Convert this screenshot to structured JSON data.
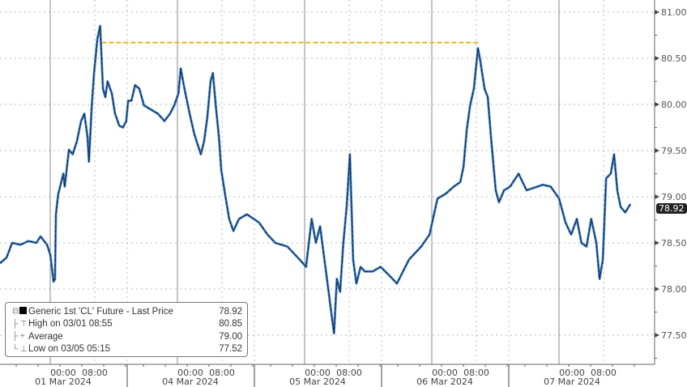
{
  "chart_data": {
    "type": "line",
    "title": "",
    "xlabel": "",
    "ylabel": "",
    "ylim": [
      77.25,
      81.1
    ],
    "y_ticks": [
      "81.00",
      "80.50",
      "80.00",
      "79.50",
      "79.00",
      "78.50",
      "78.00",
      "77.50"
    ],
    "y_tick_values": [
      81.0,
      80.5,
      80.0,
      79.5,
      79.0,
      78.5,
      78.0,
      77.5
    ],
    "y_axis_side": "right",
    "grid": true,
    "legend_placement": "bottom-left",
    "sessions": [
      "03/01",
      "03/04",
      "03/05",
      "03/06",
      "03/07"
    ],
    "x_ticks": [
      {
        "time": "00:00",
        "date": "01 Mar 2024"
      },
      {
        "time": "08:00",
        "date": ""
      },
      {
        "time": "00:00",
        "date": "04 Mar 2024"
      },
      {
        "time": "08:00",
        "date": ""
      },
      {
        "time": "00:00",
        "date": "05 Mar 2024"
      },
      {
        "time": "08:00",
        "date": ""
      },
      {
        "time": "00:00",
        "date": "06 Mar 2024"
      },
      {
        "time": "08:00",
        "date": ""
      },
      {
        "time": "00:00",
        "date": "07 Mar 2024"
      },
      {
        "time": "08:00",
        "date": ""
      }
    ],
    "series": [
      {
        "name": "Generic 1st 'CL' Future - Last Price",
        "color": "#1f4e8c",
        "points": [
          [
            "02/29 15:00",
            78.28
          ],
          [
            "02/29 16:10",
            78.34
          ],
          [
            "02/29 17:10",
            78.5
          ],
          [
            "02/29 18:40",
            78.48
          ],
          [
            "02/29 20:05",
            78.52
          ],
          [
            "02/29 21:30",
            78.5
          ],
          [
            "02/29 22:15",
            78.57
          ],
          [
            "02/29 23:25",
            78.48
          ],
          [
            "03/01 00:00",
            78.37
          ],
          [
            "03/01 00:35",
            78.08
          ],
          [
            "03/01 00:50",
            78.11
          ],
          [
            "03/01 01:00",
            78.81
          ],
          [
            "03/01 01:25",
            79.03
          ],
          [
            "03/01 02:20",
            79.25
          ],
          [
            "03/01 02:35",
            79.11
          ],
          [
            "03/01 03:20",
            79.51
          ],
          [
            "03/01 04:00",
            79.46
          ],
          [
            "03/01 04:45",
            79.6
          ],
          [
            "03/01 05:30",
            79.82
          ],
          [
            "03/01 06:05",
            79.9
          ],
          [
            "03/01 06:40",
            79.64
          ],
          [
            "03/01 06:55",
            79.38
          ],
          [
            "03/01 07:25",
            79.99
          ],
          [
            "03/01 07:50",
            80.34
          ],
          [
            "03/01 08:25",
            80.71
          ],
          [
            "03/01 08:55",
            80.85
          ],
          [
            "03/01 09:10",
            80.52
          ],
          [
            "03/01 09:25",
            80.17
          ],
          [
            "03/01 09:50",
            80.08
          ],
          [
            "03/01 10:15",
            80.25
          ],
          [
            "03/01 11:00",
            80.12
          ],
          [
            "03/01 11:35",
            79.9
          ],
          [
            "03/01 12:20",
            79.77
          ],
          [
            "03/01 13:00",
            79.75
          ],
          [
            "03/01 13:35",
            79.82
          ],
          [
            "03/03 15:10",
            80.04
          ],
          [
            "03/03 15:45",
            80.04
          ],
          [
            "03/03 16:25",
            80.21
          ],
          [
            "03/03 17:10",
            80.17
          ],
          [
            "03/03 18:00",
            79.99
          ],
          [
            "03/03 19:05",
            79.95
          ],
          [
            "03/03 20:30",
            79.9
          ],
          [
            "03/03 21:40",
            79.82
          ],
          [
            "03/03 22:40",
            79.9
          ],
          [
            "03/03 23:25",
            79.99
          ],
          [
            "03/04 00:10",
            80.12
          ],
          [
            "03/04 00:35",
            80.39
          ],
          [
            "03/04 01:15",
            80.17
          ],
          [
            "03/04 02:10",
            79.9
          ],
          [
            "03/04 03:00",
            79.68
          ],
          [
            "03/04 04:10",
            79.46
          ],
          [
            "03/04 04:45",
            79.6
          ],
          [
            "03/04 05:20",
            79.86
          ],
          [
            "03/04 05:55",
            80.25
          ],
          [
            "03/04 06:20",
            80.34
          ],
          [
            "03/04 06:50",
            79.99
          ],
          [
            "03/04 07:25",
            79.64
          ],
          [
            "03/04 07:50",
            79.29
          ],
          [
            "03/04 08:30",
            79.03
          ],
          [
            "03/04 09:15",
            78.76
          ],
          [
            "03/04 10:00",
            78.63
          ],
          [
            "03/04 11:00",
            78.76
          ],
          [
            "03/04 12:25",
            78.81
          ],
          [
            "03/04 15:50",
            78.72
          ],
          [
            "03/04 17:20",
            78.59
          ],
          [
            "03/04 18:45",
            78.5
          ],
          [
            "03/04 20:55",
            78.46
          ],
          [
            "03/04 23:05",
            78.32
          ],
          [
            "03/05 00:15",
            78.24
          ],
          [
            "03/05 01:15",
            78.76
          ],
          [
            "03/05 02:00",
            78.5
          ],
          [
            "03/05 02:45",
            78.68
          ],
          [
            "03/05 04:10",
            78.02
          ],
          [
            "03/05 04:55",
            77.67
          ],
          [
            "03/05 05:15",
            77.52
          ],
          [
            "03/05 05:45",
            78.11
          ],
          [
            "03/05 06:20",
            77.97
          ],
          [
            "03/05 06:55",
            78.5
          ],
          [
            "03/05 07:30",
            78.89
          ],
          [
            "03/05 08:05",
            79.46
          ],
          [
            "03/05 08:40",
            78.32
          ],
          [
            "03/05 09:15",
            78.06
          ],
          [
            "03/05 10:00",
            78.24
          ],
          [
            "03/05 10:45",
            78.19
          ],
          [
            "03/05 12:10",
            78.19
          ],
          [
            "03/05 13:35",
            78.24
          ],
          [
            "03/05 16:20",
            78.15
          ],
          [
            "03/05 17:45",
            78.06
          ],
          [
            "03/05 18:30",
            78.15
          ],
          [
            "03/05 19:55",
            78.32
          ],
          [
            "03/05 22:05",
            78.46
          ],
          [
            "03/05 23:35",
            78.59
          ],
          [
            "03/06 01:00",
            78.98
          ],
          [
            "03/06 02:25",
            79.03
          ],
          [
            "03/06 03:55",
            79.11
          ],
          [
            "03/06 05:05",
            79.16
          ],
          [
            "03/06 05:40",
            79.33
          ],
          [
            "03/06 06:15",
            79.73
          ],
          [
            "03/06 06:50",
            79.99
          ],
          [
            "03/06 07:30",
            80.17
          ],
          [
            "03/06 08:15",
            80.61
          ],
          [
            "03/06 08:40",
            80.47
          ],
          [
            "03/06 09:25",
            80.17
          ],
          [
            "03/06 10:00",
            80.08
          ],
          [
            "03/06 10:35",
            79.64
          ],
          [
            "03/06 11:25",
            79.07
          ],
          [
            "03/06 12:00",
            78.94
          ],
          [
            "03/06 12:55",
            79.07
          ],
          [
            "03/06 15:15",
            79.11
          ],
          [
            "03/06 16:45",
            79.25
          ],
          [
            "03/06 18:10",
            79.07
          ],
          [
            "03/06 19:40",
            79.1
          ],
          [
            "03/06 21:05",
            79.13
          ],
          [
            "03/06 22:30",
            79.11
          ],
          [
            "03/07 00:00",
            78.98
          ],
          [
            "03/07 01:10",
            78.72
          ],
          [
            "03/07 02:10",
            78.59
          ],
          [
            "03/07 03:10",
            78.76
          ],
          [
            "03/07 04:00",
            78.5
          ],
          [
            "03/07 04:55",
            78.46
          ],
          [
            "03/07 05:45",
            78.76
          ],
          [
            "03/07 06:40",
            78.5
          ],
          [
            "03/07 07:15",
            78.11
          ],
          [
            "03/07 07:50",
            78.32
          ],
          [
            "03/07 08:25",
            79.2
          ],
          [
            "03/07 09:15",
            79.25
          ],
          [
            "03/07 09:50",
            79.46
          ],
          [
            "03/07 10:25",
            79.07
          ],
          [
            "03/07 11:00",
            78.89
          ],
          [
            "03/07 11:50",
            78.83
          ],
          [
            "03/07 12:45",
            78.92
          ]
        ]
      }
    ],
    "annotation_line": {
      "from": "03/01 09:10",
      "to": "03/06 08:15",
      "value": 80.67,
      "color": "#f0b400",
      "style": "dashed"
    },
    "last_price_tag": "78.92",
    "legend": [
      {
        "label": "Generic 1st 'CL' Future - Last Price",
        "value": "78.92",
        "icon": "black-square"
      },
      {
        "label": "High on 03/01 08:55",
        "value": "80.85",
        "icon": "high-marker"
      },
      {
        "label": "Average",
        "value": "79.00",
        "icon": "average-marker"
      },
      {
        "label": "Low on 03/05 05:15",
        "value": "77.52",
        "icon": "low-marker"
      }
    ]
  }
}
